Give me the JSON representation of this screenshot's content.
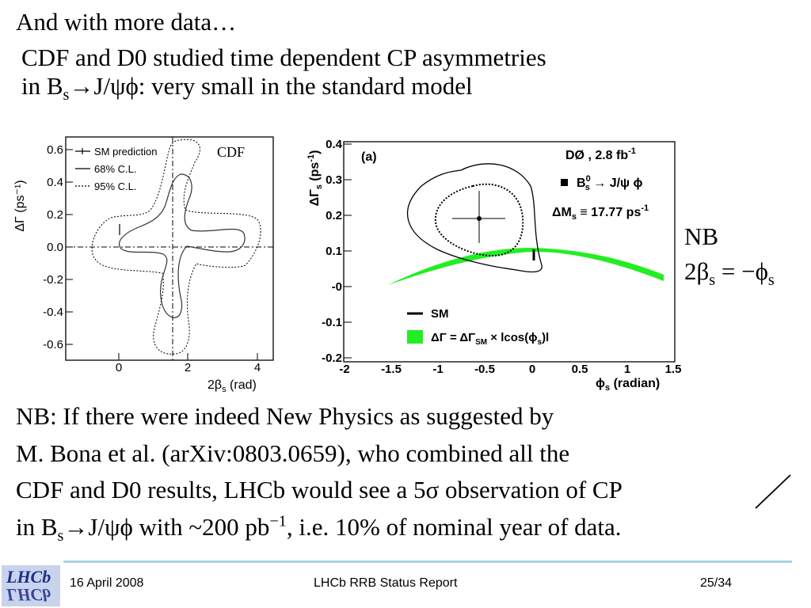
{
  "slide": {
    "line1": "And with more data…",
    "line2": "CDF and D0 studied time dependent CP asymmetries",
    "line3_pre": "in B",
    "line3_sub": "s",
    "line3_post": "→J/ψϕ: very small in the standard model",
    "nb_label": "NB",
    "nb_formula_pre": "2β",
    "nb_formula_sub1": "s",
    "nb_formula_mid": " = −ϕ",
    "nb_formula_sub2": "s",
    "para": [
      "NB: If there were indeed New Physics as suggested by",
      "M. Bona et al. (arXiv:0803.0659), who combined all the",
      "CDF and D0 results, LHCb would see a 5σ observation of CP"
    ],
    "para_last_pre": "in B",
    "para_last_sub": "s",
    "para_last_mid": "→J/ψϕ with ~200 pb",
    "para_last_sup": "−1",
    "para_last_post": ", i.e. 10% of nominal year of data."
  },
  "footer": {
    "date": "16 April 2008",
    "title": "LHCb RRB Status Report",
    "page": "25/34",
    "logo_top": "LHCb",
    "logo_bottom": "ΓHCp"
  },
  "cdf_plot": {
    "label": "CDF",
    "ylabel": "ΔΓ (ps⁻¹)",
    "xlabel_pre": "2β",
    "xlabel_sub": "s",
    "xlabel_post": " (rad)",
    "yticks": [
      "0.6",
      "0.4",
      "0.2",
      "0.0",
      "-0.2",
      "-0.4",
      "-0.6"
    ],
    "xticks": [
      "0",
      "2",
      "4"
    ],
    "legend": [
      "SM prediction",
      "68% C.L.",
      "95% C.L."
    ]
  },
  "d0_plot": {
    "panel": "(a)",
    "experiment": "DØ , 2.8 fb",
    "experiment_sup": "-1",
    "decay_pre": "B",
    "decay_sup": "0",
    "decay_sub": "s",
    "decay_post": " → J/ψ ϕ",
    "dms_pre": "ΔM",
    "dms_sub": "s",
    "dms_post": " ≡ 17.77 ps",
    "dms_sup": "-1",
    "ylabel": "ΔΓ",
    "ylabel_sub": "s",
    "ylabel_post": " (ps",
    "ylabel_sup": "-1",
    "ylabel_end": ")",
    "xlabel_pre": "ϕ",
    "xlabel_sub": "s",
    "xlabel_post": " (radian)",
    "yticks": [
      "0.4",
      "0.3",
      "0.2",
      "0.1",
      "-0",
      "-0.1",
      "-0.2"
    ],
    "xticks": [
      "-2",
      "-1.5",
      "-1",
      "-0.5",
      "0",
      "0.5",
      "1",
      "1.5"
    ],
    "legend_sm": "SM",
    "legend_band_pre": "ΔΓ = ΔΓ",
    "legend_band_sub": "SM",
    "legend_band_post": " × lcos(ϕ",
    "legend_band_sub2": "s",
    "legend_band_end": ")l",
    "band_color": "#22ee22"
  }
}
